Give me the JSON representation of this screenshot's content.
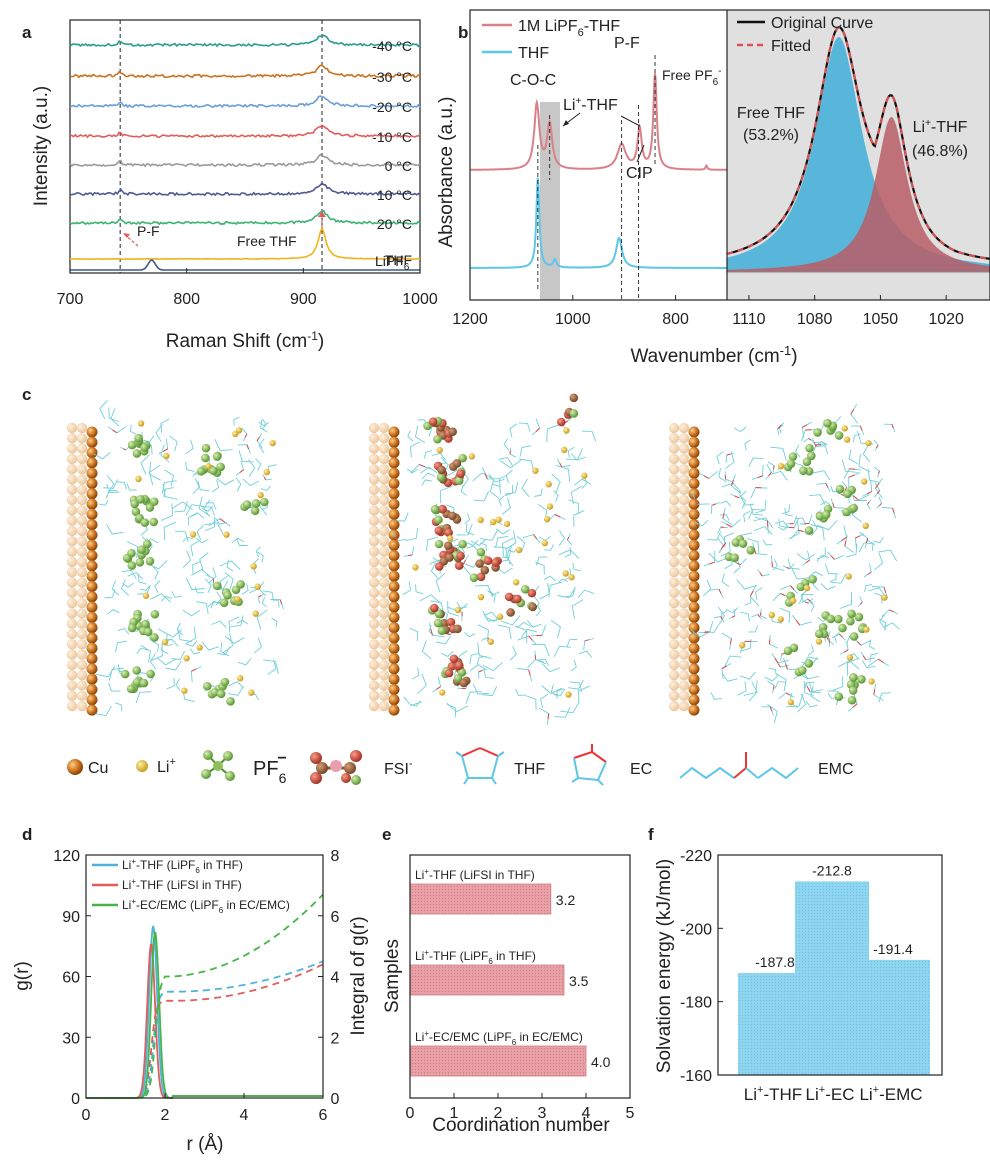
{
  "colors": {
    "teal": "#2a9d8f",
    "orange": "#c8741f",
    "blue": "#6a9fd6",
    "red": "#e05d5d",
    "gray": "#9a9a9a",
    "navy": "#4f5a92",
    "green": "#3bb371",
    "yellow": "#f2b21c",
    "darkblue": "#3b5b84",
    "pinkcurve": "#d98088",
    "cyan": "#5ec6e6",
    "fitblue": "#4fb3d9",
    "fitred": "#b85d66",
    "barpink": "#e9a0a7",
    "barblue": "#8fd6f0",
    "greenline": "#45b548",
    "shade": "#e0e0e0",
    "shadedark": "#bdbdbd",
    "cu": "#c86e1a",
    "li": "#d9a21f",
    "pf6": "#79b54c",
    "fsi": "#9a2a1a"
  },
  "panels": {
    "a": "a",
    "b": "b",
    "c": "c",
    "d": "d",
    "e": "e",
    "f": "f"
  },
  "legend_c": {
    "cu": "Cu",
    "li": "Li",
    "li_sup": "+",
    "pf6": "PF",
    "pf6_sub": "6",
    "pf6_sup": "−",
    "fsi": "FSI",
    "fsi_sup": "-",
    "thf": "THF",
    "ec": "EC",
    "emc": "EMC"
  },
  "chart_data": [
    {
      "id": "a",
      "type": "line",
      "title": "",
      "xlabel": "Raman Shift (cm",
      "xlabel_sup": "-1",
      "xlabel_end": ")",
      "ylabel": "Intensity (a.u.)",
      "xlim": [
        700,
        1000
      ],
      "xticks": [
        700,
        800,
        900,
        1000
      ],
      "vlines": [
        743,
        916
      ],
      "series": [
        {
          "name": "-40 °C",
          "peak_intensity": 1.0
        },
        {
          "name": "-30 °C",
          "peak_intensity": 1.0
        },
        {
          "name": "-20 °C",
          "peak_intensity": 1.0
        },
        {
          "name": "-10 °C",
          "peak_intensity": 1.0
        },
        {
          "name": "0 °C",
          "peak_intensity": 1.0
        },
        {
          "name": "10 °C",
          "peak_intensity": 1.0
        },
        {
          "name": "20 °C",
          "peak_intensity": 1.2
        },
        {
          "name": "THF",
          "peak_intensity": 2.2
        },
        {
          "name": "LiPF",
          "name_sub": "6",
          "peak_intensity": 1.0
        }
      ],
      "annotations": {
        "pf": "P-F",
        "free_thf": "Free THF"
      }
    },
    {
      "id": "b-left",
      "type": "line",
      "ylabel": "Absorbance (a.u.)",
      "xlabel": "Wavenumber (cm",
      "xlabel_sup": "-1",
      "xlabel_end": ")",
      "xlim": [
        1200,
        700
      ],
      "xticks": [
        1200,
        1000,
        800
      ],
      "series": [
        {
          "name": "1M LiPF",
          "name_sub": "6",
          "name_end": "-THF"
        },
        {
          "name": "THF"
        }
      ],
      "annotations": {
        "coc": "C-O-C",
        "li_thf": "Li",
        "li_thf_sup": "+",
        "li_thf_end": "-THF",
        "pf": "P-F",
        "free_pf6": "Free PF",
        "free_pf6_sub": "6",
        "free_pf6_sup": "-",
        "cip": "CIP"
      }
    },
    {
      "id": "b-right",
      "type": "area",
      "xlim": [
        1120,
        1000
      ],
      "xticks": [
        1110,
        1080,
        1050,
        1020
      ],
      "legend": {
        "original": "Original Curve",
        "fitted": "Fitted"
      },
      "components": [
        {
          "label": "Free THF",
          "percent": "(53.2%)",
          "center": 1069,
          "value": 53.2
        },
        {
          "label_pre": "Li",
          "label_sup": "+",
          "label": "-THF",
          "percent": "(46.8%)",
          "center": 1045,
          "value": 46.8
        }
      ]
    },
    {
      "id": "d",
      "type": "line",
      "xlabel": "r (Å)",
      "ylabel": "g(r)",
      "y2label": "Integral of g(r)",
      "xlim": [
        0,
        6
      ],
      "xticks": [
        0,
        2,
        4,
        6
      ],
      "ylim": [
        0,
        120
      ],
      "yticks": [
        0,
        30,
        60,
        90,
        120
      ],
      "y2lim": [
        0,
        8
      ],
      "y2ticks": [
        0,
        2,
        4,
        6,
        8
      ],
      "series": [
        {
          "pre": "Li",
          "sup": "+",
          "mid": "-THF (LiPF",
          "sub": "6",
          "end": " in THF)",
          "peak_r": 1.7,
          "peak_g": 85,
          "integral_plateau": 3.5,
          "integral_at_6": 4.5
        },
        {
          "pre": "Li",
          "sup": "+",
          "mid": "-THF (LiFSI in THF)",
          "sub": "",
          "end": "",
          "peak_r": 1.65,
          "peak_g": 76,
          "integral_plateau": 3.2,
          "integral_at_6": 4.4
        },
        {
          "pre": "Li",
          "sup": "+",
          "mid": "-EC/EMC (LiPF",
          "sub": "6",
          "end": " in EC/EMC)",
          "peak_r": 1.75,
          "peak_g": 82,
          "integral_plateau": 4.0,
          "integral_at_6": 7.0
        }
      ]
    },
    {
      "id": "e",
      "type": "bar",
      "xlabel": "Coordination number",
      "ylabel": "Samples",
      "xlim": [
        0,
        5
      ],
      "xticks": [
        0,
        1,
        2,
        3,
        4,
        5
      ],
      "bars": [
        {
          "pre": "Li",
          "sup": "+",
          "mid": "-THF (LiFSI in THF)",
          "sub": "",
          "end": "",
          "value": 3.2,
          "value_label": "3.2"
        },
        {
          "pre": "Li",
          "sup": "+",
          "mid": "-THF (LiPF",
          "sub": "6",
          "end": " in THF)",
          "value": 3.5,
          "value_label": "3.5"
        },
        {
          "pre": "Li",
          "sup": "+",
          "mid": "-EC/EMC (LiPF",
          "sub": "6",
          "end": " in EC/EMC)",
          "value": 4.0,
          "value_label": "4.0"
        }
      ]
    },
    {
      "id": "f",
      "type": "bar",
      "ylabel": "Solvation energy (kJ/mol)",
      "ylim": [
        -160,
        -220
      ],
      "yticks": [
        -160,
        -180,
        -200,
        -220
      ],
      "categories": [
        {
          "pre": "Li",
          "sup": "+",
          "end": "-THF"
        },
        {
          "pre": "Li",
          "sup": "+",
          "end": "-EC"
        },
        {
          "pre": "Li",
          "sup": "+",
          "end": "-EMC"
        }
      ],
      "values": [
        -187.8,
        -212.8,
        -191.4
      ],
      "value_labels": [
        "-187.8",
        "-212.8",
        "-191.4"
      ]
    }
  ]
}
